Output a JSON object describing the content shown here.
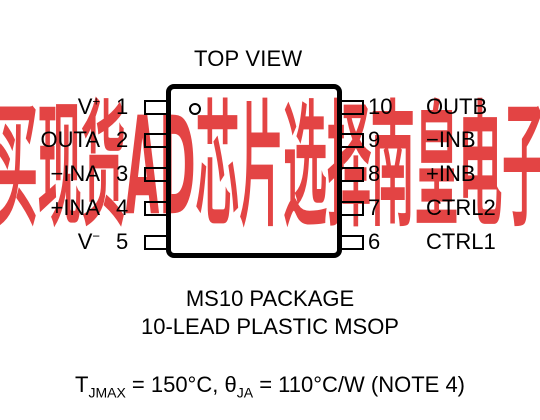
{
  "watermark": {
    "text": "买现货AD芯片选择南皇电子",
    "color": "#e03030"
  },
  "title": "TOP VIEW",
  "left_pins": [
    {
      "number": "1",
      "name": "V",
      "sup": "+"
    },
    {
      "number": "2",
      "name": "OUTA",
      "sup": ""
    },
    {
      "number": "3",
      "name": "−INA",
      "sup": ""
    },
    {
      "number": "4",
      "name": "+INA",
      "sup": ""
    },
    {
      "number": "5",
      "name": "V",
      "sup": "−"
    }
  ],
  "right_pins": [
    {
      "number": "10",
      "name": "OUTB"
    },
    {
      "number": "9",
      "name": "−INB"
    },
    {
      "number": "8",
      "name": "+INB"
    },
    {
      "number": "7",
      "name": "CTRL2"
    },
    {
      "number": "6",
      "name": "CTRL1"
    }
  ],
  "package_name": "MS10 PACKAGE",
  "package_desc": "10-LEAD PLASTIC MSOP",
  "note": {
    "t_prefix": "T",
    "t_sub": "JMAX",
    "t_value": " = 150°C, ",
    "theta": "θ",
    "theta_sub": "JA",
    "theta_value": " = 110°C/W (NOTE 4)"
  }
}
